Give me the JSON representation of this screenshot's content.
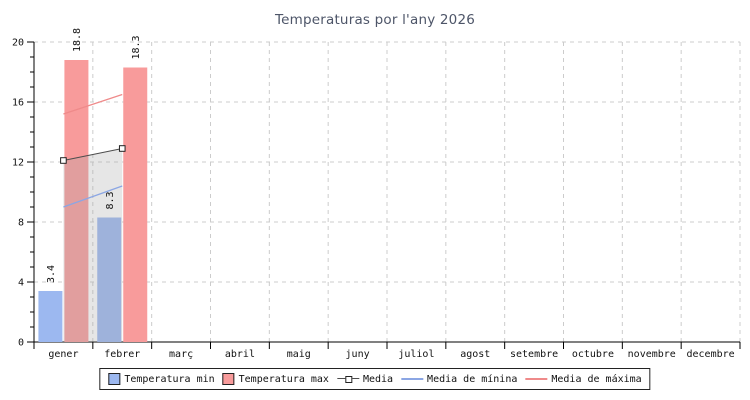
{
  "chart_data": {
    "type": "bar",
    "title": "Temperaturas por l'any 2026",
    "xlabel": "",
    "ylabel": "",
    "ylim": [
      0,
      20
    ],
    "yticks": [
      0,
      4,
      8,
      12,
      16,
      20
    ],
    "grid": true,
    "legend_position": "bottom",
    "categories": [
      "gener",
      "febrer",
      "març",
      "abril",
      "maig",
      "juny",
      "juliol",
      "agost",
      "setembre",
      "octubre",
      "novembre",
      "decembre"
    ],
    "series": [
      {
        "name": "Temperatura min",
        "type": "bar",
        "color": "#9cb8f0",
        "values": [
          3.4,
          8.3,
          null,
          null,
          null,
          null,
          null,
          null,
          null,
          null,
          null,
          null
        ]
      },
      {
        "name": "Temperatura max",
        "type": "bar",
        "color": "#f89b9b",
        "values": [
          18.8,
          18.3,
          null,
          null,
          null,
          null,
          null,
          null,
          null,
          null,
          null,
          null
        ]
      },
      {
        "name": "Media",
        "type": "line-area",
        "color": "#4d4d4d",
        "area_color": "rgba(165,165,165,0.28)",
        "marker": "square",
        "values": [
          12.1,
          12.9,
          null,
          null,
          null,
          null,
          null,
          null,
          null,
          null,
          null,
          null
        ]
      },
      {
        "name": "Media de mínina",
        "type": "line",
        "color": "#8ba6e4",
        "values": [
          9.0,
          10.4,
          null,
          null,
          null,
          null,
          null,
          null,
          null,
          null,
          null,
          null
        ]
      },
      {
        "name": "Media de máxima",
        "type": "line",
        "color": "#ef8a8a",
        "values": [
          15.2,
          16.5,
          null,
          null,
          null,
          null,
          null,
          null,
          null,
          null,
          null,
          null
        ]
      }
    ],
    "colors": {
      "grid": "#cccccc",
      "axis": "#000000",
      "title": "#4d5568",
      "bar_min": "#9cb8f0",
      "bar_max": "#f89b9b",
      "media_line": "#4d4d4d",
      "media_min_line": "#8ba6e4",
      "media_max_line": "#ef8a8a"
    }
  }
}
